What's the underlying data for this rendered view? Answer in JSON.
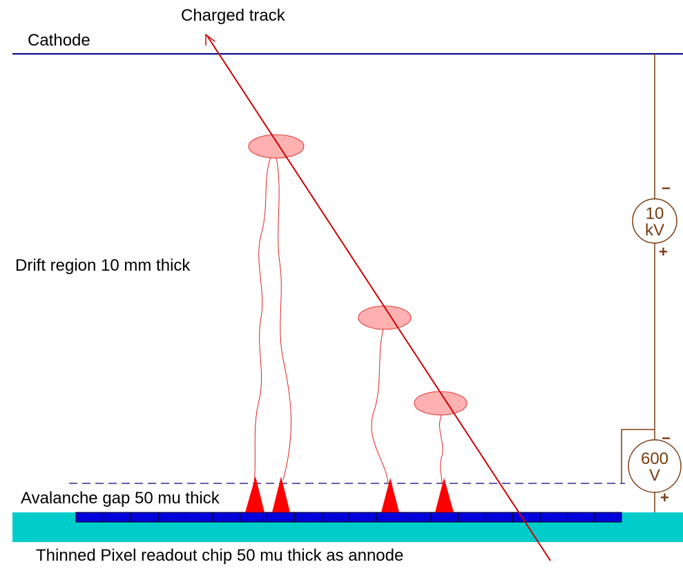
{
  "labels": {
    "track": "Charged track",
    "cathode": "Cathode",
    "drift": "Drift region 10 mm thick",
    "avalanche": "Avalanche gap 50 mu thick",
    "chip": "Thinned Pixel readout chip 50 mu thick as annode"
  },
  "sources": [
    {
      "lines": [
        "10",
        "kV"
      ],
      "minus": "−",
      "plus": "+"
    },
    {
      "lines": [
        "600",
        "V"
      ],
      "minus": "−",
      "plus": "+"
    }
  ]
}
